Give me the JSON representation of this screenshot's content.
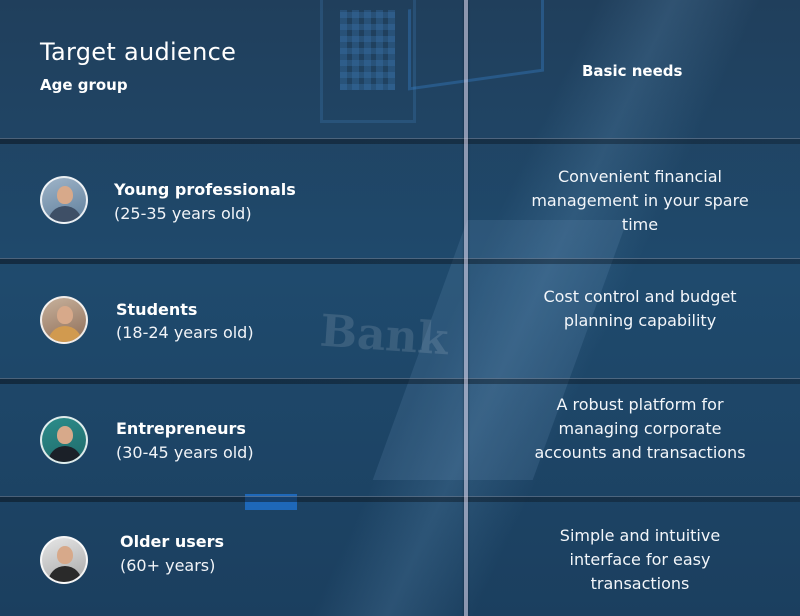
{
  "header": {
    "title": "Target audience",
    "subtitle": "Age group",
    "needs_header": "Basic needs"
  },
  "background": {
    "watermark_text": "Bank"
  },
  "rows": [
    {
      "name": "Young professionals",
      "age": "(25-35 years old)",
      "need": "Convenient financial management in your spare time"
    },
    {
      "name": "Students",
      "age": "(18-24 years old)",
      "need": "Cost control and budget planning capability"
    },
    {
      "name": "Entrepreneurs",
      "age": "(30-45 years old)",
      "need": "A robust platform for managing corporate accounts and transactions"
    },
    {
      "name": "Older users",
      "age": "(60+ years)",
      "need": "Simple and intuitive interface for easy transactions"
    }
  ],
  "colors": {
    "background": "#1f4766",
    "accent": "#1e6fc8"
  }
}
